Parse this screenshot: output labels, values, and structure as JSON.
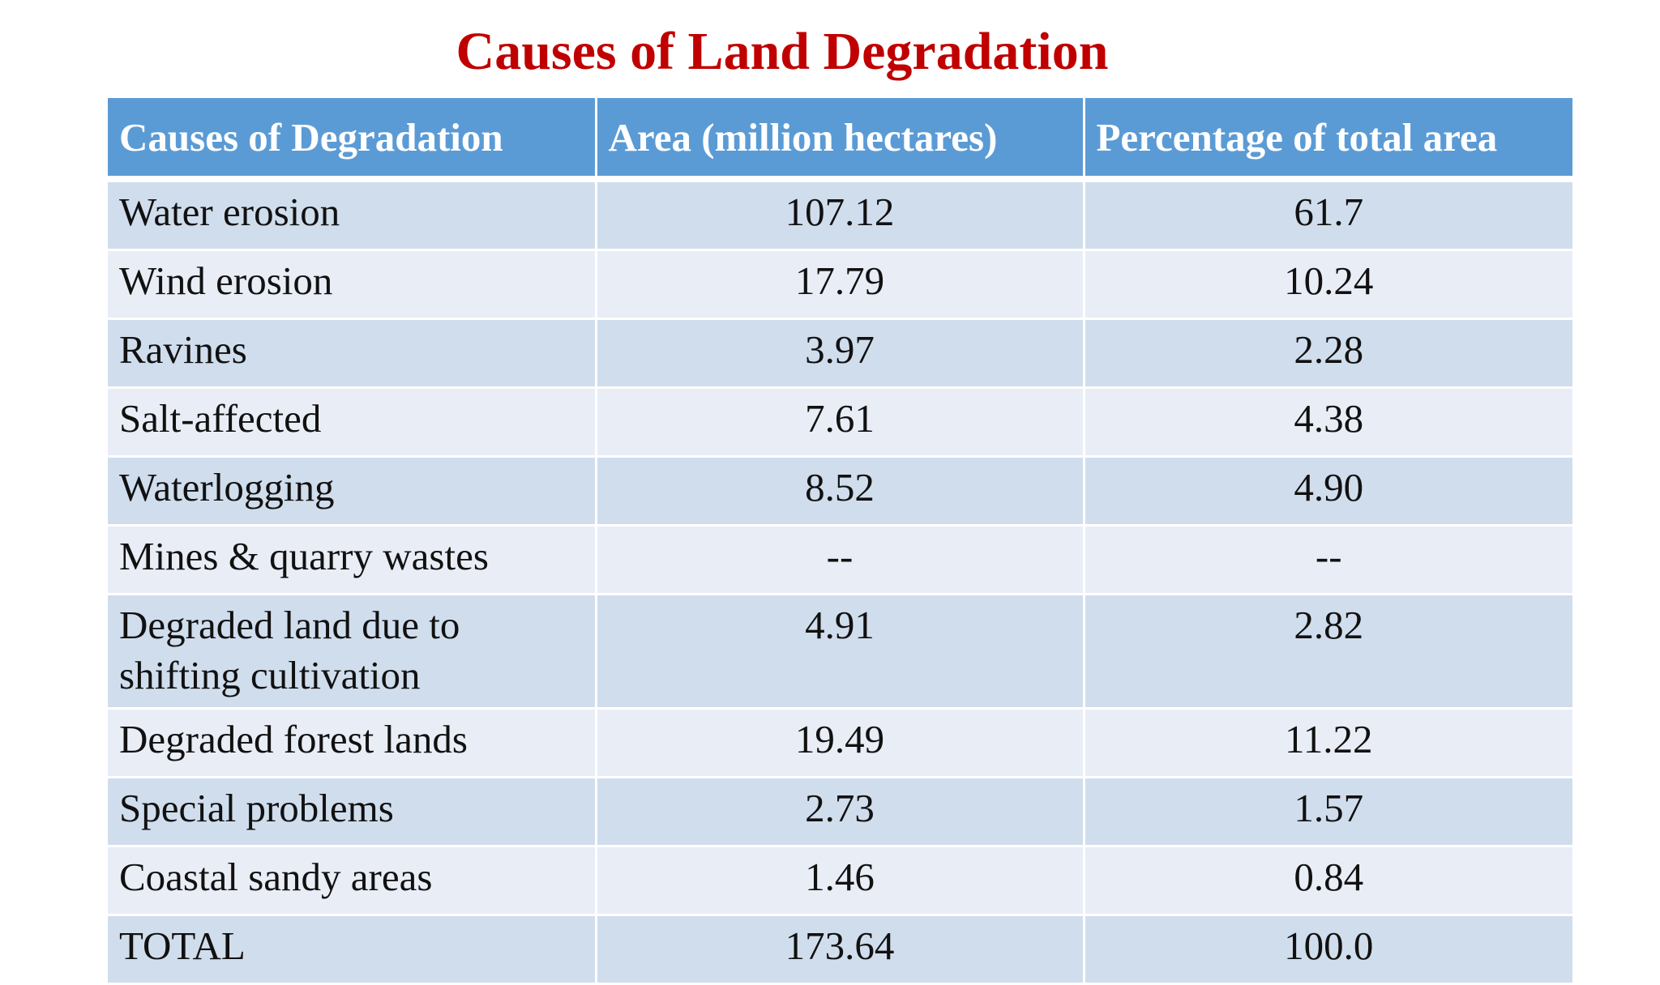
{
  "title": "Causes of Land Degradation",
  "colors": {
    "title": "#c00000",
    "header_bg": "#5b9bd5",
    "row_odd": "#d0dded",
    "row_even": "#e9edf6"
  },
  "table": {
    "headers": [
      "Causes of Degradation",
      "Area (million hectares)",
      "Percentage of total area"
    ],
    "rows": [
      {
        "cause": "Water erosion",
        "area": "107.12",
        "percent": "61.7"
      },
      {
        "cause": "Wind erosion",
        "area": "17.79",
        "percent": "10.24"
      },
      {
        "cause": "Ravines",
        "area": "3.97",
        "percent": "2.28"
      },
      {
        "cause": "Salt-affected",
        "area": "7.61",
        "percent": "4.38"
      },
      {
        "cause": "Waterlogging",
        "area": "8.52",
        "percent": "4.90"
      },
      {
        "cause": "Mines & quarry wastes",
        "area": "--",
        "percent": "--"
      },
      {
        "cause": "Degraded land due to shifting cultivation",
        "area": "4.91",
        "percent": "2.82"
      },
      {
        "cause": "Degraded forest lands",
        "area": "19.49",
        "percent": "11.22"
      },
      {
        "cause": "Special problems",
        "area": "2.73",
        "percent": "1.57"
      },
      {
        "cause": "Coastal sandy areas",
        "area": "1.46",
        "percent": "0.84"
      },
      {
        "cause": "TOTAL",
        "area": "173.64",
        "percent": "100.0"
      }
    ]
  }
}
